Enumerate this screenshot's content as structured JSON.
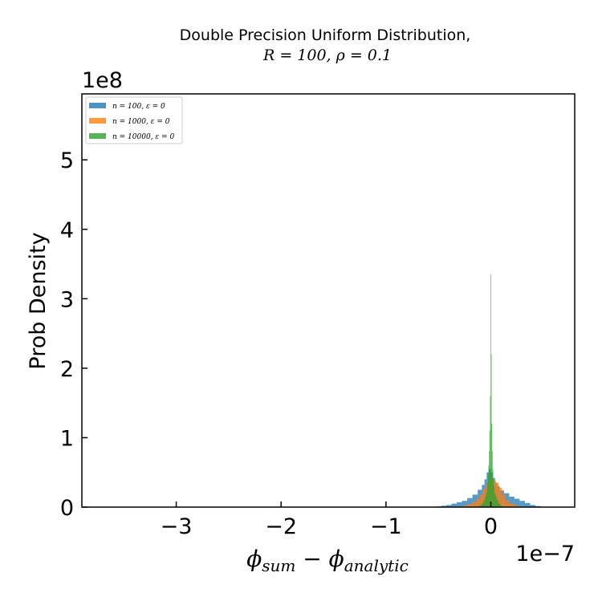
{
  "chart_data": {
    "type": "histogram",
    "title_line1": "Double Precision Uniform Distribution,",
    "title_line2": "R = 100, ρ = 0.1",
    "ylabel": "Prob Density",
    "xlabel_parts": {
      "phi1": "ϕ",
      "sub1": "sum",
      "minus": " − ",
      "phi2": "ϕ",
      "sub2": "analytic"
    },
    "y_offset_text": "1e8",
    "x_offset_text": "1e−7",
    "xlim": [
      -3.9,
      0.8
    ],
    "ylim": [
      0,
      5.95
    ],
    "x_scale_exponent": -7,
    "y_scale_exponent": 8,
    "xticks": [
      -3,
      -2,
      -1,
      0
    ],
    "xtick_labels": [
      "−3",
      "−2",
      "−1",
      "0"
    ],
    "yticks": [
      0,
      1,
      2,
      3,
      4,
      5
    ],
    "ytick_labels": [
      "0",
      "1",
      "2",
      "3",
      "4",
      "5"
    ],
    "legend": {
      "placement": "top-left",
      "entries": [
        {
          "label": "n = 100, ε = 0",
          "color": "#1f77b4"
        },
        {
          "label": "n = 1000, ε = 0",
          "color": "#ff7f0e"
        },
        {
          "label": "n = 10000, ε = 0",
          "color": "#2ca02c"
        }
      ]
    },
    "series": [
      {
        "name": "n = 100, ε = 0",
        "color": "#1f77b4",
        "alpha": 0.75,
        "x": [
          -0.55,
          -0.5,
          -0.45,
          -0.4,
          -0.35,
          -0.3,
          -0.25,
          -0.2,
          -0.15,
          -0.1,
          -0.07,
          -0.05,
          -0.03,
          -0.01,
          0.01,
          0.03,
          0.05,
          0.07,
          0.1,
          0.15,
          0.2,
          0.25,
          0.3,
          0.35,
          0.4,
          0.45,
          0.5
        ],
        "values": [
          0.005,
          0.01,
          0.02,
          0.03,
          0.05,
          0.07,
          0.09,
          0.13,
          0.18,
          0.25,
          0.32,
          0.4,
          0.5,
          0.55,
          0.5,
          0.42,
          0.35,
          0.3,
          0.24,
          0.2,
          0.15,
          0.12,
          0.09,
          0.06,
          0.03,
          0.015,
          0.005
        ]
      },
      {
        "name": "n = 1000, ε = 0",
        "color": "#ff7f0e",
        "alpha": 0.75,
        "x": [
          -0.25,
          -0.2,
          -0.15,
          -0.12,
          -0.09,
          -0.06,
          -0.04,
          -0.02,
          -0.01,
          0.0,
          0.01,
          0.02,
          0.04,
          0.06,
          0.09,
          0.12,
          0.15,
          0.2,
          0.25
        ],
        "values": [
          0.02,
          0.04,
          0.08,
          0.12,
          0.18,
          0.26,
          0.33,
          0.38,
          0.42,
          0.45,
          0.43,
          0.4,
          0.38,
          0.35,
          0.28,
          0.18,
          0.1,
          0.05,
          0.02
        ]
      },
      {
        "name": "n = 10000, ε = 0",
        "color": "#2ca02c",
        "alpha": 0.8,
        "x": [
          -0.1,
          -0.08,
          -0.06,
          -0.05,
          -0.04,
          -0.03,
          -0.025,
          -0.02,
          -0.015,
          -0.01,
          -0.005,
          0.0,
          0.005,
          0.01,
          0.015,
          0.02,
          0.025,
          0.03,
          0.04,
          0.05,
          0.06,
          0.08,
          0.1
        ],
        "values": [
          0.02,
          0.05,
          0.1,
          0.15,
          0.22,
          0.35,
          0.45,
          0.6,
          0.8,
          1.1,
          1.6,
          3.35,
          2.2,
          1.2,
          0.8,
          0.55,
          0.4,
          0.3,
          0.2,
          0.15,
          0.1,
          0.05,
          0.02
        ]
      }
    ]
  }
}
